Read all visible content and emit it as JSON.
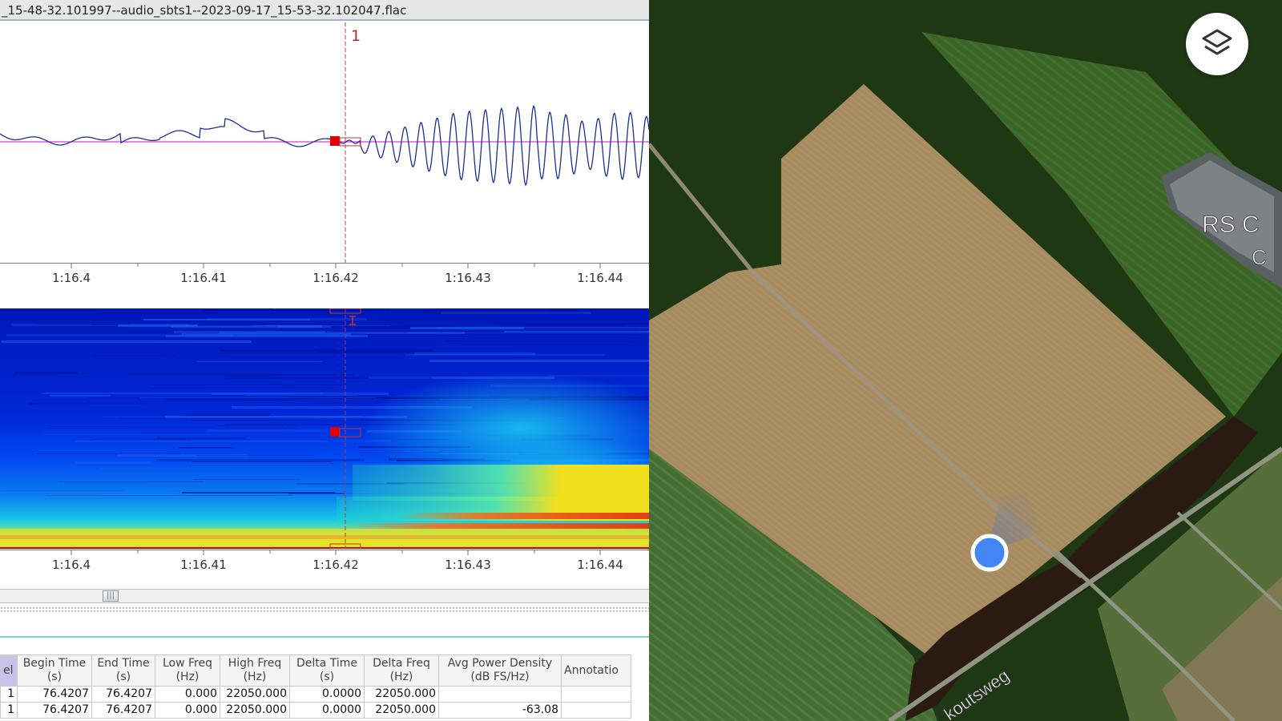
{
  "window": {
    "title": "_15-48-32.101997--audio_sbts1--2023-09-17_15-53-32.102047.flac"
  },
  "marker": {
    "label": "1",
    "color": "#cc2222"
  },
  "waveform": {
    "time_ticks": [
      "1:16.4",
      "1:16.41",
      "1:16.42",
      "1:16.43",
      "1:16.44"
    ],
    "colors": {
      "signal": "#1c2e9c",
      "baseline": "#cc44cc"
    }
  },
  "spectrogram": {
    "time_ticks": [
      "1:16.4",
      "1:16.41",
      "1:16.42",
      "1:16.43",
      "1:16.44"
    ]
  },
  "selection_table": {
    "columns": [
      {
        "line1": "el",
        "line2": ""
      },
      {
        "line1": "Begin Time",
        "line2": "(s)"
      },
      {
        "line1": "End Time",
        "line2": "(s)"
      },
      {
        "line1": "Low Freq",
        "line2": "(Hz)"
      },
      {
        "line1": "High Freq",
        "line2": "(Hz)"
      },
      {
        "line1": "Delta Time",
        "line2": "(s)"
      },
      {
        "line1": "Delta Freq",
        "line2": "(Hz)"
      },
      {
        "line1": "Avg Power Density",
        "line2": "(dB FS/Hz)"
      },
      {
        "line1": "Annotatio",
        "line2": ""
      }
    ],
    "rows": [
      [
        "1",
        "76.4207",
        "76.4207",
        "0.000",
        "22050.000",
        "0.0000",
        "22050.000",
        "",
        ""
      ],
      [
        "1",
        "76.4207",
        "76.4207",
        "0.000",
        "22050.000",
        "0.0000",
        "22050.000",
        "-63.08",
        ""
      ]
    ]
  },
  "map": {
    "building_label_1": "RS C",
    "building_label_2": "C",
    "street_label": "koutsweg",
    "layers_icon": "layers-icon",
    "colors": {
      "location_dot": "#4285f4",
      "field": "#a58a60",
      "grass": "#3f6a2b",
      "trees": "#1f3a14"
    }
  }
}
